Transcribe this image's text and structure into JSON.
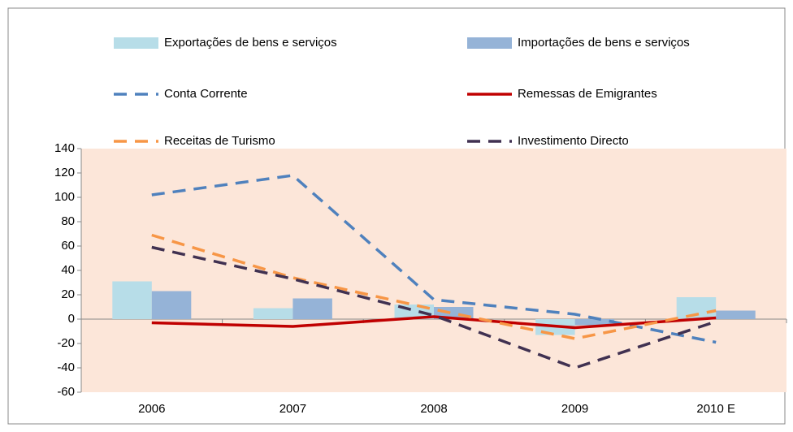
{
  "chart_data": {
    "type": "bar",
    "categories": [
      "2006",
      "2007",
      "2008",
      "2009",
      "2010 E"
    ],
    "series": [
      {
        "name": "Exportações de bens e serviços",
        "type": "bar",
        "color": "#b7dde8",
        "values": [
          31,
          9,
          12,
          -13,
          18
        ]
      },
      {
        "name": "Importações de bens e serviços",
        "type": "bar",
        "color": "#95b3d7",
        "values": [
          23,
          17,
          10,
          -5,
          7
        ]
      },
      {
        "name": "Conta  Corrente",
        "type": "line",
        "dashed": true,
        "color": "#4f81bd",
        "values": [
          102,
          118,
          16,
          4,
          -19
        ]
      },
      {
        "name": "Remessas de Emigrantes",
        "type": "line",
        "dashed": false,
        "color": "#c00000",
        "values": [
          -3,
          -6,
          2,
          -7,
          1
        ]
      },
      {
        "name": "Receitas de Turismo",
        "type": "line",
        "dashed": true,
        "color": "#f79646",
        "values": [
          69,
          34,
          8,
          -16,
          7
        ]
      },
      {
        "name": "Investimento Directo",
        "type": "line",
        "dashed": true,
        "color": "#403151",
        "values": [
          59,
          33,
          3,
          -40,
          -2
        ]
      }
    ],
    "ylim": [
      -60,
      140
    ],
    "yticks": [
      -60,
      -40,
      -20,
      0,
      20,
      40,
      60,
      80,
      100,
      120,
      140
    ]
  }
}
